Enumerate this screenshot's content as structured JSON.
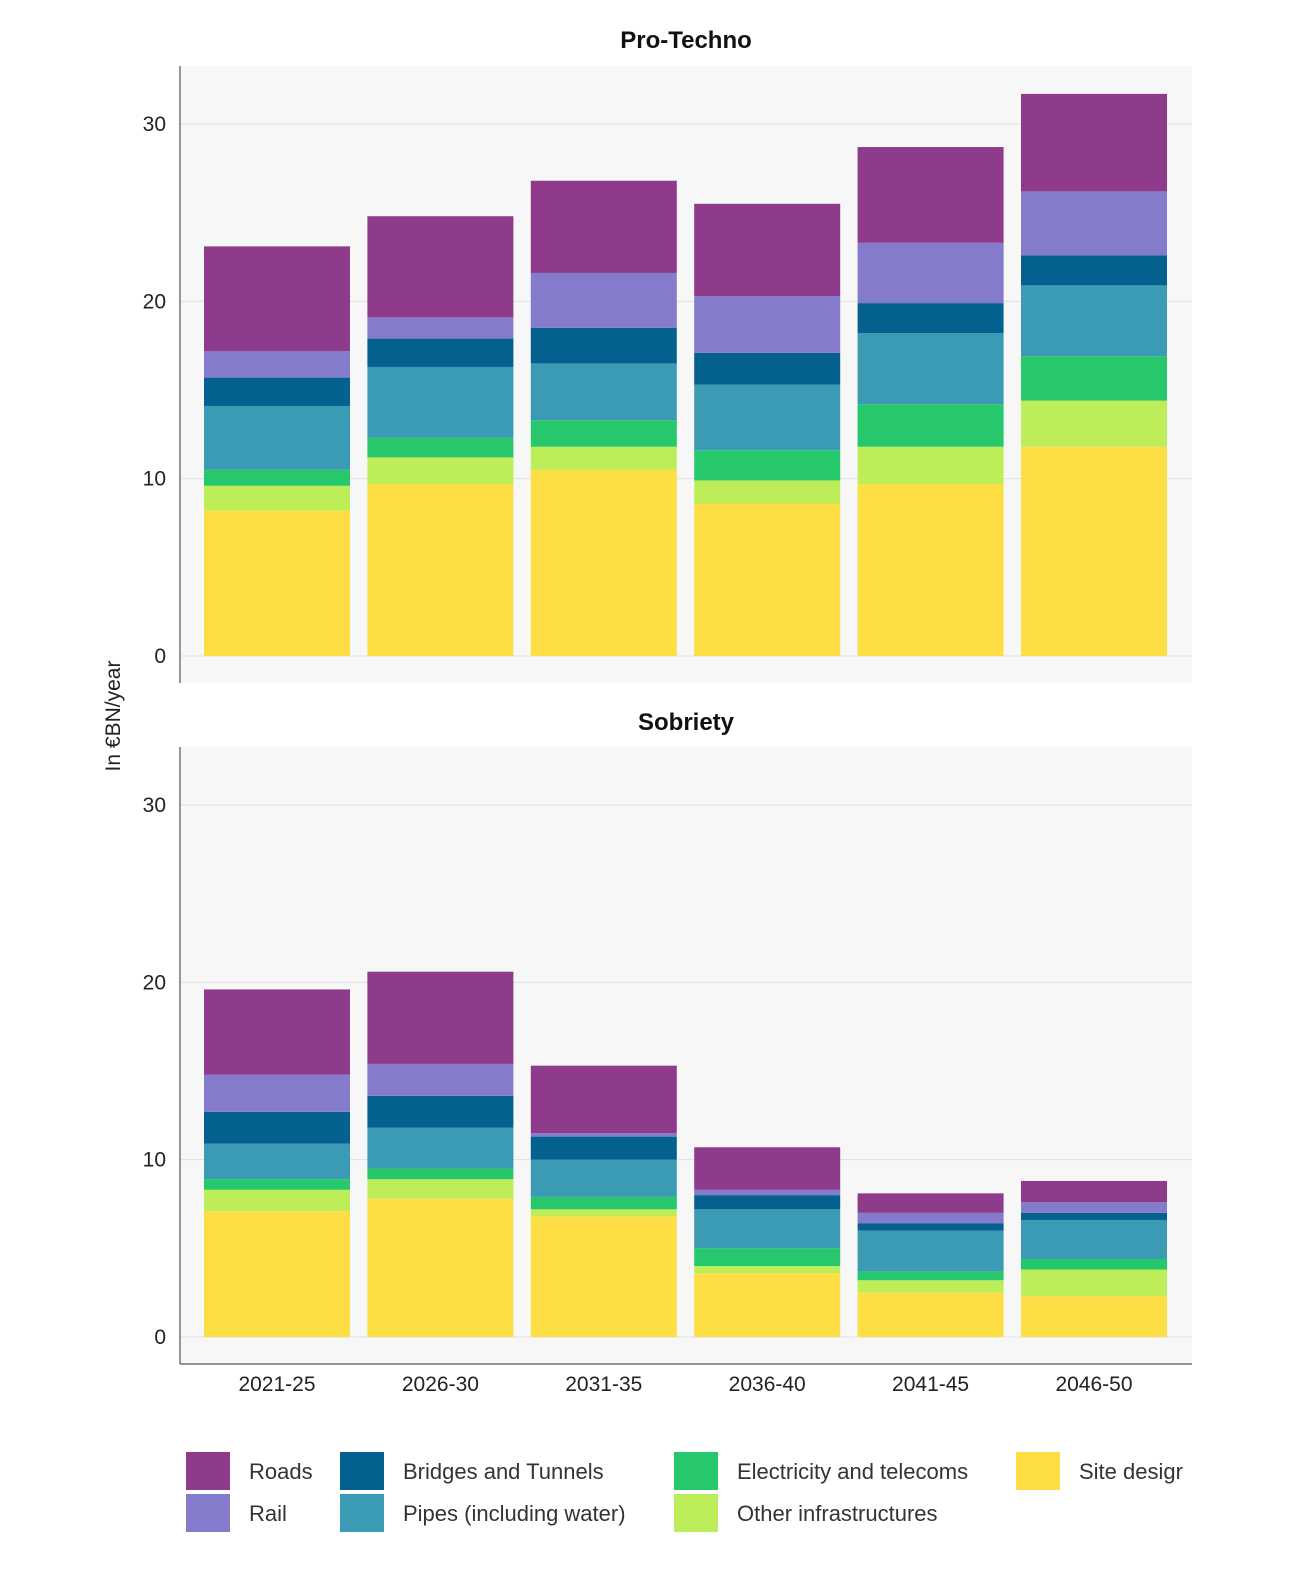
{
  "chart_data": {
    "type": "bar",
    "stacked": true,
    "ylabel": "In €BN/year",
    "categories": [
      "2021-25",
      "2026-30",
      "2031-35",
      "2036-40",
      "2041-45",
      "2046-50"
    ],
    "ylim": [
      0,
      33
    ],
    "yticks": [
      "0",
      "10",
      "20",
      "30"
    ],
    "legend_position": "bottom",
    "series_meta": [
      {
        "name": "Site design",
        "color": "#fdde45"
      },
      {
        "name": "Other infrastructures",
        "color": "#bdee5a"
      },
      {
        "name": "Electricity and telecoms",
        "color": "#27c86c"
      },
      {
        "name": "Pipes (including water)",
        "color": "#3b9ab4"
      },
      {
        "name": "Bridges and Tunnels",
        "color": "#04618f"
      },
      {
        "name": "Rail",
        "color": "#847bcc"
      },
      {
        "name": "Roads",
        "color": "#8f3b8b"
      }
    ],
    "legend": [
      {
        "label": "Roads",
        "color": "#8f3b8b"
      },
      {
        "label": "Rail",
        "color": "#847bcc"
      },
      {
        "label": "Bridges and Tunnels",
        "color": "#04618f"
      },
      {
        "label": "Pipes (including water)",
        "color": "#3b9ab4"
      },
      {
        "label": "Electricity and telecoms",
        "color": "#27c86c"
      },
      {
        "label": "Other infrastructures",
        "color": "#bdee5a"
      },
      {
        "label": "Site desigr",
        "color": "#fdde45"
      }
    ],
    "panels": [
      {
        "title": "Pro-Techno",
        "series": [
          {
            "name": "Site design",
            "values": [
              8.2,
              9.7,
              10.5,
              8.6,
              9.7,
              11.8
            ]
          },
          {
            "name": "Other infrastructures",
            "values": [
              1.4,
              1.5,
              1.3,
              1.3,
              2.1,
              2.6
            ]
          },
          {
            "name": "Electricity and telecoms",
            "values": [
              0.9,
              1.1,
              1.5,
              1.7,
              2.4,
              2.5
            ]
          },
          {
            "name": "Pipes (including water)",
            "values": [
              3.6,
              4.0,
              3.2,
              3.7,
              4.0,
              4.0
            ]
          },
          {
            "name": "Bridges and Tunnels",
            "values": [
              1.6,
              1.6,
              2.0,
              1.8,
              1.7,
              1.7
            ]
          },
          {
            "name": "Rail",
            "values": [
              1.5,
              1.2,
              3.1,
              3.2,
              3.4,
              3.6
            ]
          },
          {
            "name": "Roads",
            "values": [
              5.9,
              5.7,
              5.2,
              5.2,
              5.4,
              5.5
            ]
          }
        ]
      },
      {
        "title": "Sobriety",
        "series": [
          {
            "name": "Site design",
            "values": [
              7.1,
              7.8,
              6.8,
              3.6,
              2.5,
              2.3
            ]
          },
          {
            "name": "Other infrastructures",
            "values": [
              1.2,
              1.1,
              0.4,
              0.4,
              0.7,
              1.5
            ]
          },
          {
            "name": "Electricity and telecoms",
            "values": [
              0.6,
              0.6,
              0.7,
              1.0,
              0.5,
              0.6
            ]
          },
          {
            "name": "Pipes (including water)",
            "values": [
              2.0,
              2.3,
              2.1,
              2.2,
              2.3,
              2.2
            ]
          },
          {
            "name": "Bridges and Tunnels",
            "values": [
              1.8,
              1.8,
              1.3,
              0.8,
              0.4,
              0.4
            ]
          },
          {
            "name": "Rail",
            "values": [
              2.1,
              1.8,
              0.2,
              0.3,
              0.6,
              0.6
            ]
          },
          {
            "name": "Roads",
            "values": [
              4.8,
              5.2,
              3.8,
              2.4,
              1.1,
              1.2
            ]
          }
        ]
      }
    ]
  }
}
